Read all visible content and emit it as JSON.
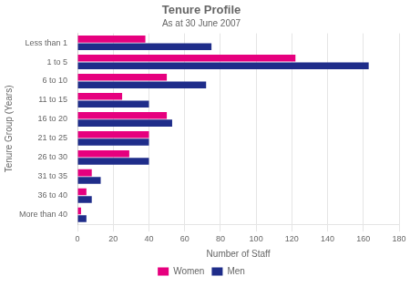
{
  "chart_data": {
    "type": "bar",
    "orientation": "horizontal",
    "title": "Tenure Profile",
    "subtitle": "As at 30 June 2007",
    "xlabel": "Number of Staff",
    "ylabel": "Tenure Group (Years)",
    "categories": [
      "Less than 1",
      "1 to 5",
      "6 to 10",
      "11 to 15",
      "16 to 20",
      "21 to 25",
      "26 to 30",
      "31 to 35",
      "36 to 40",
      "More than 40"
    ],
    "series": [
      {
        "name": "Women",
        "color": "#e6007e",
        "values": [
          38,
          122,
          50,
          25,
          50,
          40,
          29,
          8,
          5,
          2
        ]
      },
      {
        "name": "Men",
        "color": "#1f2d8a",
        "values": [
          75,
          163,
          72,
          40,
          53,
          40,
          40,
          13,
          8,
          5
        ]
      }
    ],
    "xlim": [
      0,
      180
    ],
    "xticks": [
      0,
      20,
      40,
      60,
      80,
      100,
      120,
      140,
      160,
      180
    ],
    "grid": true,
    "legend": "bottom"
  }
}
